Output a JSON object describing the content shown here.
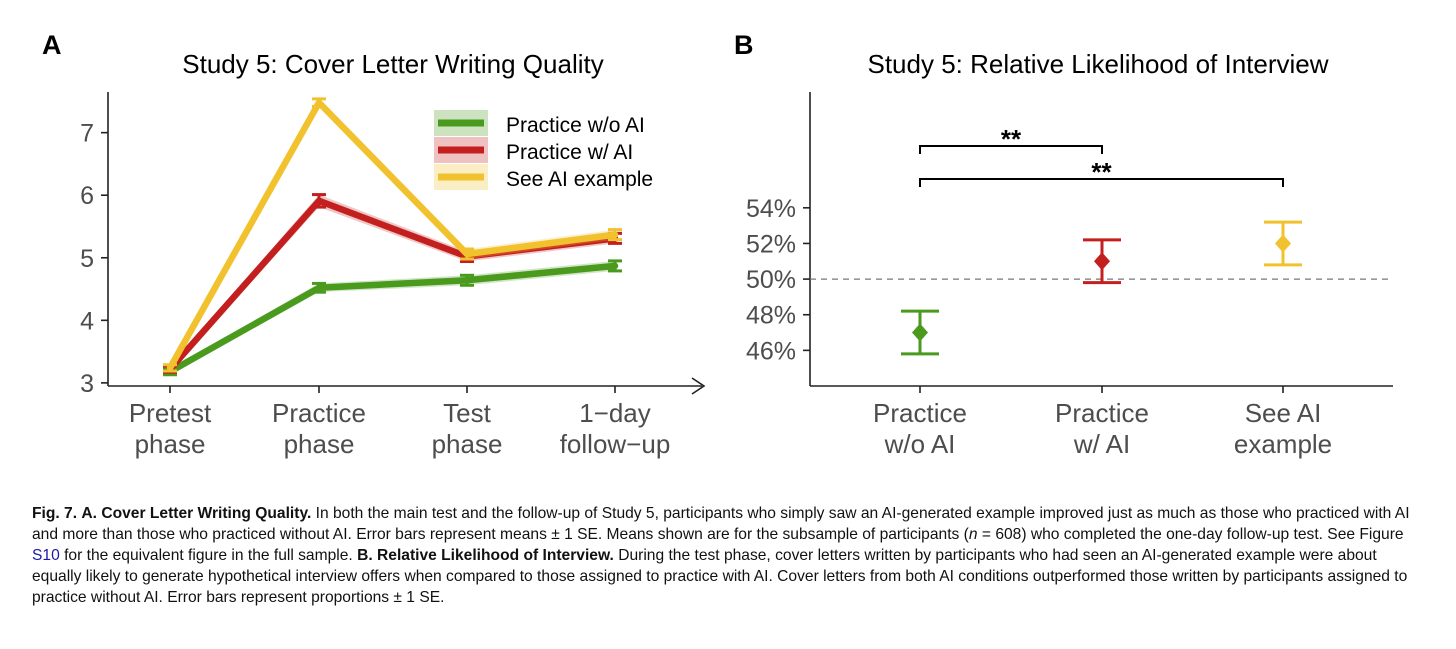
{
  "colors": {
    "practice_without_ai": "#4a9a1e",
    "practice_with_ai": "#c41f1f",
    "see_ai_example": "#f2c12e",
    "axis": "#222222",
    "tick_text": "#4d4d4d",
    "link": "#1a1aa6"
  },
  "chart_data": [
    {
      "type": "line",
      "panel_label": "A",
      "title": "Study 5: Cover Letter Writing Quality",
      "xlabel": "",
      "ylabel": "",
      "categories": [
        [
          "Pretest",
          "phase"
        ],
        [
          "Practice",
          "phase"
        ],
        [
          "Test",
          "phase"
        ],
        [
          "1−day",
          "follow−up"
        ]
      ],
      "ylim": [
        2.95,
        7.65
      ],
      "yticks": [
        3,
        4,
        5,
        6,
        7
      ],
      "grid": false,
      "legend_position": "top-right",
      "series": [
        {
          "key": "practice_without_ai",
          "name": "Practice w/o AI",
          "values": [
            3.18,
            4.52,
            4.64,
            4.87
          ],
          "se": [
            0.05,
            0.07,
            0.08,
            0.08
          ]
        },
        {
          "key": "practice_with_ai",
          "name": "Practice w/ AI",
          "values": [
            3.22,
            5.91,
            5.02,
            5.31
          ],
          "se": [
            0.05,
            0.1,
            0.08,
            0.08
          ]
        },
        {
          "key": "see_ai_example",
          "name": "See AI example",
          "values": [
            3.24,
            7.48,
            5.06,
            5.37
          ],
          "se": [
            0.05,
            0.06,
            0.08,
            0.08
          ]
        }
      ]
    },
    {
      "type": "scatter",
      "panel_label": "B",
      "title": "Study 5: Relative Likelihood of Interview",
      "xlabel": "",
      "ylabel": "",
      "categories": [
        [
          "Practice",
          "w/o AI"
        ],
        [
          "Practice",
          "w/ AI"
        ],
        [
          "See AI",
          "example"
        ]
      ],
      "keys": [
        "practice_without_ai",
        "practice_with_ai",
        "see_ai_example"
      ],
      "values": [
        47.0,
        51.0,
        52.0
      ],
      "se": [
        1.2,
        1.2,
        1.2
      ],
      "ylim": [
        44.0,
        60.5
      ],
      "yticks": [
        46,
        48,
        50,
        52,
        54
      ],
      "ytick_labels": [
        "46%",
        "48%",
        "50%",
        "52%",
        "54%"
      ],
      "reference_line": 50,
      "grid": false,
      "significance": [
        {
          "from": 0,
          "to": 1,
          "label": "**"
        },
        {
          "from": 0,
          "to": 2,
          "label": "**"
        }
      ]
    }
  ],
  "caption": {
    "fig_label": "Fig. 7.",
    "part_a_title": "A. Cover Letter Writing Quality.",
    "part_a_text_1": "In both the main test and the follow-up of Study 5, participants who simply saw an AI-generated example improved just as much as those who practiced with AI and more than those who practiced without AI. Error bars represent means ± 1 SE. Means shown are for the subsample of participants (",
    "n_symbol": "n",
    "n_value": " = 608) who completed the one-day follow-up test. See Figure ",
    "figure_ref": "S10",
    "part_a_text_2": " for the equivalent figure in the full sample.",
    "part_b_title": "B. Relative Likelihood of Interview.",
    "part_b_text": "During the test phase, cover letters written by participants who had seen an AI-generated example were about equally likely to generate hypothetical interview offers when compared to those assigned to practice with AI. Cover letters from both AI conditions outperformed those written by participants assigned to practice without AI. Error bars represent proportions ± 1 SE."
  }
}
